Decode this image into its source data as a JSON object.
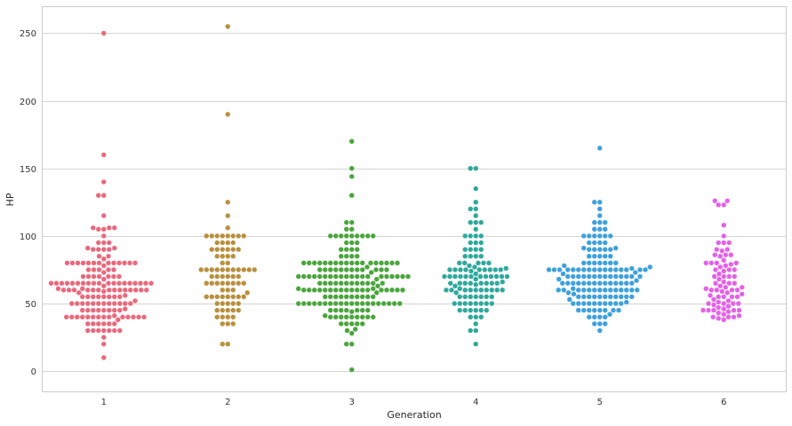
{
  "chart_data": {
    "type": "scatter",
    "title": "",
    "xlabel": "Generation",
    "ylabel": "HP",
    "categories": [
      "1",
      "2",
      "3",
      "4",
      "5",
      "6"
    ],
    "ylim": [
      -15,
      270
    ],
    "yticks": [
      0,
      50,
      100,
      150,
      200,
      250
    ],
    "grid": true,
    "series": [
      {
        "color": "#e8697d",
        "values": [
          250,
          160,
          140,
          130,
          130,
          115,
          106,
          106,
          106,
          105,
          105,
          100,
          95,
          95,
          95,
          91,
          91,
          90,
          90,
          90,
          90,
          85,
          85,
          83,
          80,
          80,
          80,
          80,
          80,
          80,
          80,
          80,
          80,
          80,
          80,
          80,
          80,
          78,
          75,
          75,
          75,
          75,
          75,
          73,
          70,
          70,
          70,
          70,
          70,
          70,
          70,
          68,
          65,
          65,
          65,
          65,
          65,
          65,
          65,
          65,
          65,
          65,
          65,
          65,
          65,
          65,
          65,
          65,
          65,
          65,
          65,
          63,
          61,
          61,
          60,
          60,
          60,
          60,
          60,
          60,
          60,
          60,
          60,
          60,
          60,
          60,
          60,
          60,
          59,
          58,
          56,
          55,
          55,
          55,
          55,
          55,
          55,
          55,
          55,
          52,
          50,
          50,
          50,
          50,
          50,
          50,
          50,
          50,
          50,
          50,
          50,
          50,
          46,
          45,
          45,
          45,
          45,
          45,
          45,
          45,
          45,
          41,
          40,
          40,
          40,
          40,
          40,
          40,
          40,
          40,
          40,
          40,
          40,
          40,
          40,
          40,
          38,
          35,
          35,
          35,
          35,
          35,
          35,
          30,
          30,
          30,
          30,
          30,
          30,
          30,
          25,
          20,
          10
        ]
      },
      {
        "color": "#b8903e",
        "values": [
          255,
          190,
          125,
          115,
          106,
          100,
          100,
          100,
          100,
          100,
          100,
          100,
          100,
          95,
          95,
          95,
          95,
          90,
          90,
          90,
          90,
          90,
          90,
          85,
          85,
          85,
          85,
          80,
          80,
          75,
          75,
          75,
          75,
          75,
          75,
          75,
          75,
          75,
          75,
          75,
          70,
          70,
          70,
          70,
          70,
          70,
          65,
          65,
          65,
          65,
          65,
          65,
          65,
          65,
          60,
          60,
          60,
          58,
          55,
          55,
          55,
          55,
          55,
          55,
          55,
          55,
          50,
          50,
          50,
          50,
          50,
          45,
          45,
          45,
          45,
          45,
          40,
          40,
          40,
          40,
          35,
          35,
          35,
          20,
          20
        ]
      },
      {
        "color": "#4aa53c",
        "values": [
          170,
          150,
          144,
          130,
          110,
          110,
          105,
          105,
          100,
          100,
          100,
          100,
          100,
          100,
          100,
          100,
          100,
          95,
          95,
          95,
          90,
          90,
          90,
          90,
          85,
          85,
          85,
          85,
          80,
          80,
          80,
          80,
          80,
          80,
          80,
          80,
          80,
          80,
          80,
          80,
          80,
          80,
          80,
          80,
          80,
          80,
          77,
          75,
          75,
          75,
          75,
          75,
          75,
          75,
          75,
          75,
          75,
          75,
          75,
          73,
          70,
          70,
          70,
          70,
          70,
          70,
          70,
          70,
          70,
          70,
          70,
          70,
          70,
          70,
          70,
          70,
          70,
          70,
          70,
          70,
          68,
          65,
          65,
          65,
          65,
          65,
          65,
          65,
          65,
          65,
          65,
          65,
          65,
          63,
          61,
          61,
          60,
          60,
          60,
          60,
          60,
          60,
          60,
          60,
          60,
          60,
          60,
          60,
          60,
          60,
          60,
          60,
          60,
          60,
          58,
          55,
          55,
          55,
          55,
          55,
          55,
          55,
          55,
          55,
          55,
          50,
          50,
          50,
          50,
          50,
          50,
          50,
          50,
          50,
          50,
          50,
          50,
          50,
          50,
          50,
          50,
          50,
          50,
          50,
          50,
          45,
          45,
          45,
          45,
          45,
          45,
          45,
          44,
          41,
          40,
          40,
          40,
          40,
          40,
          40,
          40,
          40,
          40,
          35,
          35,
          35,
          35,
          35,
          31,
          30,
          28,
          20,
          20,
          1
        ]
      },
      {
        "color": "#2fa89c",
        "values": [
          150,
          150,
          135,
          125,
          120,
          120,
          115,
          110,
          110,
          110,
          105,
          100,
          100,
          100,
          100,
          95,
          95,
          95,
          90,
          90,
          90,
          90,
          85,
          85,
          85,
          85,
          80,
          80,
          80,
          80,
          80,
          78,
          77,
          76,
          75,
          75,
          75,
          75,
          75,
          75,
          75,
          75,
          75,
          74,
          72,
          70,
          70,
          70,
          70,
          70,
          70,
          70,
          70,
          70,
          70,
          70,
          70,
          68,
          66,
          65,
          65,
          65,
          65,
          65,
          65,
          65,
          65,
          64,
          63,
          61,
          60,
          60,
          60,
          60,
          60,
          60,
          60,
          60,
          60,
          60,
          58,
          55,
          55,
          55,
          55,
          55,
          55,
          55,
          50,
          50,
          50,
          50,
          50,
          50,
          50,
          50,
          45,
          45,
          45,
          45,
          45,
          45,
          40,
          40,
          40,
          35,
          30,
          30,
          20
        ]
      },
      {
        "color": "#3ea1dc",
        "values": [
          165,
          125,
          125,
          120,
          115,
          110,
          110,
          110,
          105,
          105,
          105,
          100,
          100,
          100,
          100,
          100,
          100,
          95,
          95,
          95,
          95,
          91,
          91,
          90,
          90,
          90,
          90,
          90,
          85,
          85,
          85,
          85,
          85,
          80,
          80,
          80,
          80,
          80,
          80,
          80,
          78,
          77,
          76,
          75,
          75,
          75,
          75,
          75,
          75,
          75,
          75,
          75,
          75,
          75,
          75,
          75,
          75,
          75,
          75,
          75,
          73,
          72,
          70,
          70,
          70,
          70,
          70,
          70,
          70,
          70,
          70,
          70,
          70,
          70,
          70,
          70,
          68,
          67,
          65,
          65,
          65,
          65,
          65,
          65,
          65,
          65,
          65,
          65,
          65,
          65,
          65,
          65,
          61,
          60,
          60,
          60,
          60,
          60,
          60,
          60,
          60,
          60,
          60,
          60,
          60,
          60,
          60,
          58,
          57,
          55,
          55,
          55,
          55,
          55,
          55,
          55,
          55,
          55,
          55,
          55,
          53,
          51,
          50,
          50,
          50,
          50,
          50,
          50,
          50,
          50,
          50,
          50,
          45,
          45,
          45,
          45,
          45,
          45,
          45,
          45,
          42,
          40,
          40,
          40,
          40,
          35,
          35,
          35,
          30
        ]
      },
      {
        "color": "#e362e6",
        "values": [
          126,
          126,
          123,
          123,
          108,
          100,
          95,
          95,
          95,
          90,
          90,
          89,
          86,
          86,
          86,
          85,
          82,
          80,
          80,
          80,
          80,
          79,
          78,
          77,
          75,
          75,
          75,
          74,
          72,
          70,
          70,
          70,
          70,
          68,
          66,
          65,
          65,
          65,
          63,
          62,
          62,
          61,
          60,
          60,
          60,
          60,
          59,
          58,
          57,
          56,
          55,
          55,
          55,
          55,
          53,
          52,
          51,
          50,
          50,
          50,
          50,
          49,
          48,
          47,
          46,
          45,
          45,
          45,
          45,
          45,
          44,
          43,
          42,
          41,
          40,
          40,
          40,
          39,
          38
        ]
      }
    ]
  }
}
